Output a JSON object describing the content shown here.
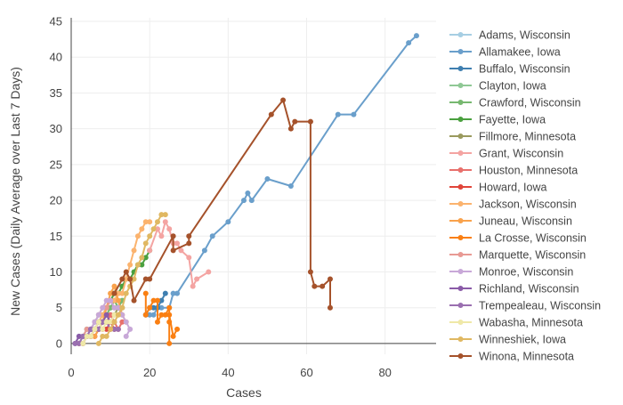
{
  "chart_data": {
    "type": "line",
    "xlabel": "Cases",
    "ylabel": "New Cases (Daily Average over Last 7 Days)",
    "xlim": [
      0,
      93
    ],
    "ylim": [
      -1.5,
      45.5
    ],
    "xticks": [
      0,
      20,
      40,
      60,
      80
    ],
    "yticks": [
      0,
      5,
      10,
      15,
      20,
      25,
      30,
      35,
      40,
      45
    ],
    "grid": true,
    "legend_position": "right",
    "series": [
      {
        "name": "Adams, Wisconsin",
        "color": "#a6cee3",
        "points": [
          [
            1,
            0
          ],
          [
            2,
            1
          ],
          [
            3,
            1
          ],
          [
            4,
            2
          ],
          [
            5,
            2
          ],
          [
            6,
            3
          ],
          [
            7,
            3
          ],
          [
            8,
            4
          ],
          [
            9,
            4
          ],
          [
            10,
            5
          ]
        ]
      },
      {
        "name": "Allamakee, Iowa",
        "color": "#6a9fcb",
        "points": [
          [
            20,
            4
          ],
          [
            21,
            4
          ],
          [
            22,
            5
          ],
          [
            23,
            5
          ],
          [
            25,
            5
          ],
          [
            26,
            7
          ],
          [
            27,
            7
          ],
          [
            34,
            13
          ],
          [
            36,
            15
          ],
          [
            40,
            17
          ],
          [
            44,
            20
          ],
          [
            45,
            21
          ],
          [
            46,
            20
          ],
          [
            50,
            23
          ],
          [
            56,
            22
          ],
          [
            68,
            32
          ],
          [
            72,
            32
          ],
          [
            86,
            42
          ],
          [
            88,
            43
          ]
        ]
      },
      {
        "name": "Buffalo, Wisconsin",
        "color": "#3f7fb0",
        "points": [
          [
            19,
            4
          ],
          [
            20,
            5
          ],
          [
            21,
            5
          ],
          [
            22,
            5
          ],
          [
            23,
            6
          ],
          [
            24,
            7
          ]
        ]
      },
      {
        "name": "Clayton, Iowa",
        "color": "#8fc895",
        "points": [
          [
            2,
            0
          ],
          [
            3,
            1
          ],
          [
            4,
            2
          ],
          [
            5,
            2
          ],
          [
            6,
            3
          ],
          [
            7,
            4
          ],
          [
            8,
            4
          ],
          [
            9,
            5
          ],
          [
            10,
            5
          ],
          [
            11,
            6
          ],
          [
            12,
            5
          ],
          [
            13,
            6
          ]
        ]
      },
      {
        "name": "Crawford, Wisconsin",
        "color": "#77b870",
        "points": [
          [
            3,
            0
          ],
          [
            4,
            1
          ],
          [
            5,
            1
          ],
          [
            6,
            2
          ],
          [
            7,
            3
          ],
          [
            8,
            3
          ],
          [
            9,
            4
          ],
          [
            10,
            5
          ],
          [
            11,
            6
          ],
          [
            12,
            5
          ],
          [
            13,
            6
          ]
        ]
      },
      {
        "name": "Fayette, Iowa",
        "color": "#4aa03f",
        "points": [
          [
            10,
            6
          ],
          [
            11,
            7
          ],
          [
            12,
            7
          ],
          [
            13,
            8
          ],
          [
            14,
            9
          ],
          [
            15,
            9
          ],
          [
            16,
            10
          ],
          [
            17,
            11
          ],
          [
            18,
            11
          ],
          [
            19,
            12
          ],
          [
            20,
            13
          ]
        ]
      },
      {
        "name": "Fillmore, Minnesota",
        "color": "#9a9a5e",
        "points": [
          [
            5,
            1
          ],
          [
            6,
            2
          ],
          [
            7,
            2
          ],
          [
            8,
            3
          ],
          [
            9,
            3
          ],
          [
            10,
            4
          ],
          [
            11,
            4
          ],
          [
            12,
            5
          ],
          [
            13,
            5
          ]
        ]
      },
      {
        "name": "Grant, Wisconsin",
        "color": "#f4a4a2",
        "points": [
          [
            20,
            13
          ],
          [
            22,
            16
          ],
          [
            23,
            15
          ],
          [
            24,
            17
          ],
          [
            25,
            16
          ],
          [
            26,
            14
          ],
          [
            27,
            14
          ],
          [
            28,
            13
          ],
          [
            30,
            12
          ],
          [
            31,
            8
          ],
          [
            32,
            9
          ],
          [
            35,
            10
          ]
        ]
      },
      {
        "name": "Houston, Minnesota",
        "color": "#e8706c",
        "points": [
          [
            4,
            1
          ],
          [
            5,
            1
          ],
          [
            6,
            2
          ],
          [
            7,
            2
          ],
          [
            8,
            3
          ],
          [
            9,
            3
          ],
          [
            10,
            4
          ],
          [
            11,
            3
          ],
          [
            12,
            2
          ],
          [
            13,
            3
          ]
        ]
      },
      {
        "name": "Howard, Iowa",
        "color": "#e0453a",
        "points": [
          [
            2,
            0
          ],
          [
            3,
            0
          ],
          [
            4,
            1
          ],
          [
            5,
            1
          ],
          [
            6,
            1
          ],
          [
            7,
            2
          ],
          [
            8,
            2
          ],
          [
            9,
            2
          ],
          [
            10,
            3
          ],
          [
            11,
            2
          ]
        ]
      },
      {
        "name": "Jackson, Wisconsin",
        "color": "#fbb36e",
        "points": [
          [
            4,
            1
          ],
          [
            5,
            2
          ],
          [
            6,
            2
          ],
          [
            7,
            3
          ],
          [
            8,
            4
          ],
          [
            9,
            5
          ],
          [
            10,
            6
          ],
          [
            11,
            6
          ],
          [
            12,
            7
          ],
          [
            13,
            7
          ],
          [
            14,
            9
          ],
          [
            15,
            11
          ],
          [
            16,
            13
          ],
          [
            17,
            15
          ],
          [
            18,
            16
          ],
          [
            19,
            17
          ],
          [
            20,
            17
          ]
        ]
      },
      {
        "name": "Juneau, Wisconsin",
        "color": "#f9a24c",
        "points": [
          [
            6,
            1
          ],
          [
            7,
            2
          ],
          [
            8,
            3
          ],
          [
            9,
            5
          ],
          [
            10,
            7
          ],
          [
            11,
            8
          ],
          [
            12,
            6
          ],
          [
            13,
            4
          ],
          [
            14,
            3
          ]
        ]
      },
      {
        "name": "La Crosse, Wisconsin",
        "color": "#fa7f12",
        "points": [
          [
            19,
            7
          ],
          [
            19,
            4
          ],
          [
            20,
            5
          ],
          [
            21,
            6
          ],
          [
            22,
            6
          ],
          [
            22,
            3
          ],
          [
            23,
            4
          ],
          [
            24,
            4
          ],
          [
            25,
            5
          ],
          [
            25,
            0
          ],
          [
            25,
            3
          ],
          [
            25,
            4
          ],
          [
            26,
            1
          ],
          [
            27,
            2
          ]
        ]
      },
      {
        "name": "Marquette, Wisconsin",
        "color": "#e89a94",
        "points": [
          [
            3,
            1
          ],
          [
            4,
            2
          ],
          [
            5,
            2
          ],
          [
            6,
            3
          ],
          [
            7,
            4
          ],
          [
            8,
            5
          ],
          [
            9,
            5
          ],
          [
            10,
            6
          ],
          [
            11,
            5
          ],
          [
            12,
            5
          ]
        ]
      },
      {
        "name": "Monroe, Wisconsin",
        "color": "#c8a8d8",
        "points": [
          [
            5,
            2
          ],
          [
            6,
            3
          ],
          [
            7,
            4
          ],
          [
            8,
            5
          ],
          [
            9,
            6
          ],
          [
            10,
            6
          ],
          [
            11,
            5
          ],
          [
            12,
            5
          ],
          [
            13,
            4
          ],
          [
            14,
            3
          ],
          [
            15,
            2
          ],
          [
            14,
            1
          ]
        ]
      },
      {
        "name": "Richland, Wisconsin",
        "color": "#8a5ba8",
        "points": [
          [
            1,
            0
          ],
          [
            2,
            1
          ],
          [
            3,
            1
          ],
          [
            4,
            1
          ],
          [
            5,
            2
          ],
          [
            6,
            2
          ],
          [
            7,
            3
          ],
          [
            8,
            3
          ],
          [
            9,
            4
          ],
          [
            10,
            3
          ],
          [
            11,
            3
          ]
        ]
      },
      {
        "name": "Trempealeau, Wisconsin",
        "color": "#9a6fb0",
        "points": [
          [
            1,
            0
          ],
          [
            2,
            0
          ],
          [
            3,
            1
          ],
          [
            4,
            1
          ],
          [
            5,
            2
          ],
          [
            6,
            2
          ],
          [
            7,
            2
          ],
          [
            8,
            3
          ],
          [
            9,
            3
          ],
          [
            10,
            2
          ],
          [
            11,
            2
          ],
          [
            12,
            2
          ]
        ]
      },
      {
        "name": "Wabasha, Minnesota",
        "color": "#efe8a8",
        "points": [
          [
            3,
            0
          ],
          [
            4,
            1
          ],
          [
            5,
            1
          ],
          [
            6,
            2
          ],
          [
            7,
            3
          ],
          [
            8,
            2
          ],
          [
            9,
            3
          ],
          [
            10,
            3
          ],
          [
            11,
            4
          ],
          [
            12,
            4
          ]
        ]
      },
      {
        "name": "Winneshiek, Iowa",
        "color": "#e0b862",
        "points": [
          [
            7,
            0
          ],
          [
            8,
            1
          ],
          [
            9,
            1
          ],
          [
            10,
            2
          ],
          [
            11,
            3
          ],
          [
            12,
            4
          ],
          [
            13,
            5
          ],
          [
            14,
            7
          ],
          [
            15,
            8
          ],
          [
            16,
            9
          ],
          [
            17,
            11
          ],
          [
            18,
            12
          ],
          [
            19,
            14
          ],
          [
            20,
            15
          ],
          [
            21,
            16
          ],
          [
            22,
            17
          ],
          [
            23,
            18
          ],
          [
            24,
            18
          ]
        ]
      },
      {
        "name": "Winona, Minnesota",
        "color": "#a5522b",
        "points": [
          [
            11,
            7
          ],
          [
            13,
            9
          ],
          [
            14,
            10
          ],
          [
            15,
            9
          ],
          [
            16,
            6
          ],
          [
            19,
            9
          ],
          [
            20,
            9
          ],
          [
            26,
            15
          ],
          [
            26,
            13
          ],
          [
            30,
            14
          ],
          [
            30,
            15
          ],
          [
            51,
            32
          ],
          [
            54,
            34
          ],
          [
            56,
            30
          ],
          [
            57,
            31
          ],
          [
            61,
            31
          ],
          [
            61,
            10
          ],
          [
            62,
            8
          ],
          [
            64,
            8
          ],
          [
            66,
            9
          ],
          [
            66,
            5
          ]
        ]
      }
    ]
  }
}
